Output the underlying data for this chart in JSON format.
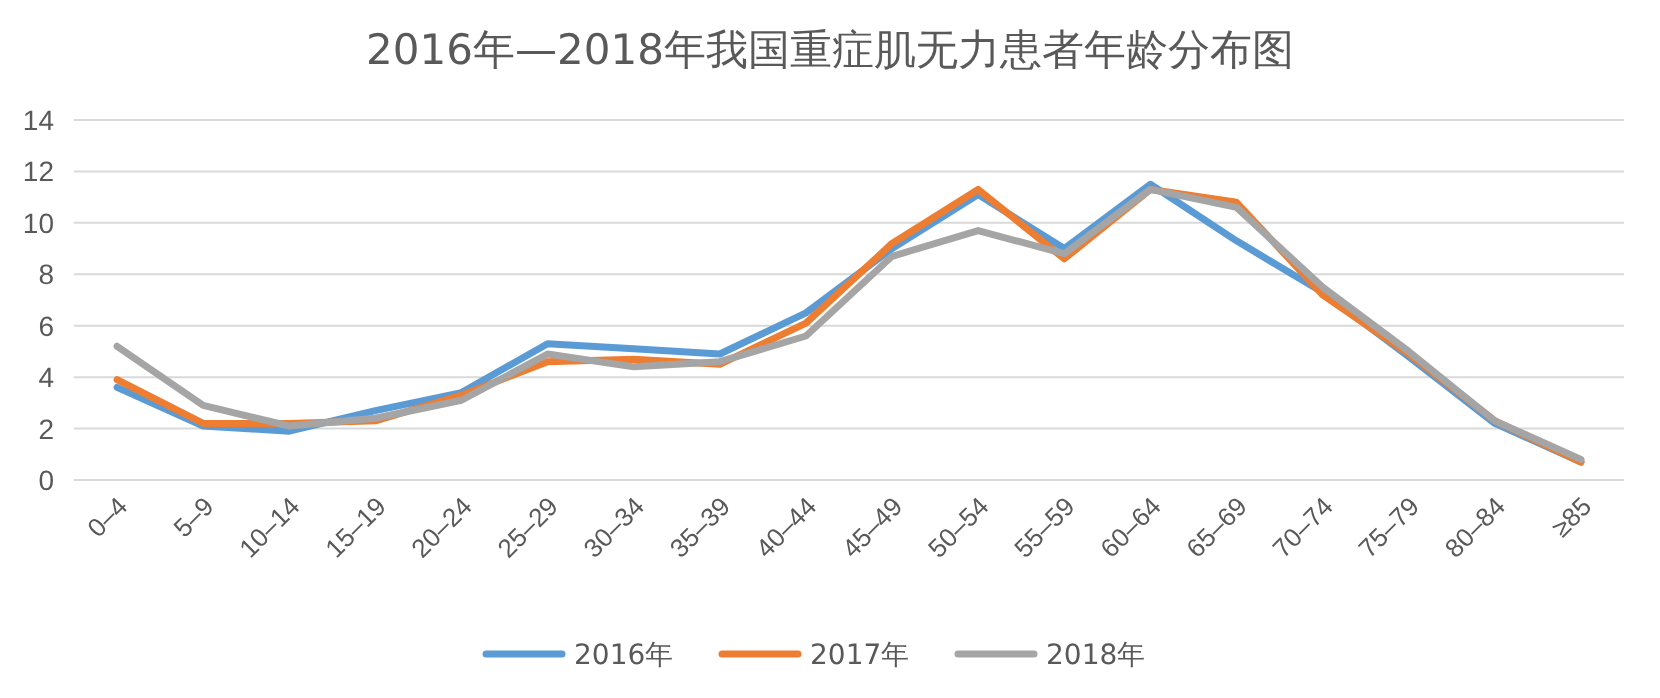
{
  "chart_data": {
    "type": "line",
    "title": "2016年—2018年我国重症肌无力患者年龄分布图",
    "categories": [
      "0–4",
      "5–9",
      "10–14",
      "15–19",
      "20–24",
      "25–29",
      "30–34",
      "35–39",
      "40–44",
      "45–49",
      "50–54",
      "55–59",
      "60–64",
      "65–69",
      "70–74",
      "75–79",
      "80–84",
      "≥85"
    ],
    "series": [
      {
        "name": "2016年",
        "color": "#5b9bd5",
        "values": [
          3.6,
          2.1,
          1.9,
          2.7,
          3.4,
          5.3,
          5.1,
          4.9,
          6.5,
          9.0,
          11.1,
          9.0,
          11.5,
          9.3,
          7.3,
          4.8,
          2.2,
          0.7
        ]
      },
      {
        "name": "2017年",
        "color": "#ed7d31",
        "values": [
          3.9,
          2.2,
          2.2,
          2.3,
          3.3,
          4.6,
          4.7,
          4.5,
          6.1,
          9.2,
          11.3,
          8.6,
          11.3,
          10.8,
          7.2,
          4.9,
          2.3,
          0.7
        ]
      },
      {
        "name": "2018年",
        "color": "#a5a5a5",
        "values": [
          5.2,
          2.9,
          2.1,
          2.4,
          3.1,
          4.9,
          4.4,
          4.6,
          5.6,
          8.7,
          9.7,
          8.8,
          11.3,
          10.6,
          7.5,
          5.0,
          2.3,
          0.8
        ]
      }
    ],
    "ylim": [
      0,
      14
    ],
    "yticks": [
      0,
      2,
      4,
      6,
      8,
      10,
      12,
      14
    ],
    "grid": "y",
    "legend": "bottom",
    "marker": "none",
    "line_style": "solid"
  }
}
